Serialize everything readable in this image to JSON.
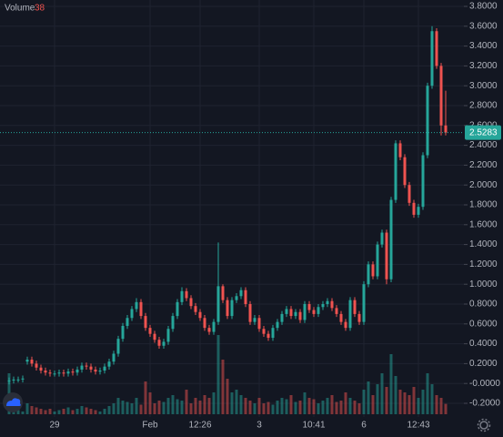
{
  "chart_data": {
    "type": "candlestick",
    "categories": [
      null,
      null,
      null,
      null,
      null,
      null,
      null,
      null,
      null,
      null,
      "29",
      null,
      null,
      null,
      null,
      null,
      null,
      null,
      null,
      null,
      null,
      null,
      null,
      null,
      null,
      null,
      null,
      null,
      null,
      null,
      null,
      "Feb",
      null,
      null,
      null,
      null,
      null,
      null,
      null,
      null,
      null,
      null,
      "12:26",
      null,
      null,
      null,
      null,
      null,
      null,
      null,
      null,
      null,
      null,
      null,
      null,
      "3",
      null,
      null,
      null,
      null,
      null,
      null,
      null,
      null,
      null,
      null,
      null,
      "10:41",
      null,
      null,
      null,
      null,
      null,
      null,
      null,
      null,
      null,
      null,
      "6",
      null,
      null,
      null,
      null,
      null,
      null,
      null,
      null,
      null,
      null,
      null,
      "12:43",
      null,
      null,
      null,
      null,
      null,
      null
    ],
    "open": [
      0.02,
      0.03,
      0.04,
      0.04,
      0.22,
      0.24,
      0.2,
      0.16,
      0.13,
      0.11,
      0.1,
      0.1,
      0.11,
      0.1,
      0.12,
      0.11,
      0.14,
      0.18,
      0.17,
      0.14,
      0.12,
      0.13,
      0.17,
      0.22,
      0.3,
      0.45,
      0.58,
      0.66,
      0.75,
      0.82,
      0.68,
      0.56,
      0.5,
      0.44,
      0.38,
      0.42,
      0.55,
      0.68,
      0.82,
      0.93,
      0.86,
      0.78,
      0.72,
      0.66,
      0.56,
      0.52,
      0.62,
      0.98,
      0.84,
      0.68,
      0.84,
      0.88,
      0.94,
      0.8,
      0.62,
      0.66,
      0.55,
      0.5,
      0.46,
      0.56,
      0.62,
      0.7,
      0.75,
      0.68,
      0.72,
      0.64,
      0.8,
      0.74,
      0.7,
      0.77,
      0.8,
      0.83,
      0.76,
      0.7,
      0.62,
      0.56,
      0.84,
      0.7,
      0.62,
      1.0,
      1.2,
      1.08,
      1.4,
      1.52,
      1.05,
      1.85,
      2.42,
      2.28,
      2.0,
      1.82,
      1.7,
      1.78,
      2.3,
      3.0,
      3.55,
      3.2,
      2.6
    ],
    "high": [
      0.06,
      0.07,
      0.07,
      0.08,
      0.27,
      0.27,
      0.23,
      0.19,
      0.16,
      0.14,
      0.13,
      0.14,
      0.14,
      0.15,
      0.15,
      0.17,
      0.21,
      0.21,
      0.2,
      0.17,
      0.16,
      0.2,
      0.25,
      0.33,
      0.48,
      0.61,
      0.69,
      0.78,
      0.86,
      0.85,
      0.71,
      0.59,
      0.53,
      0.47,
      0.45,
      0.58,
      0.71,
      0.85,
      0.97,
      0.96,
      0.89,
      0.81,
      0.75,
      0.69,
      0.59,
      0.65,
      1.42,
      1.0,
      0.87,
      0.87,
      0.91,
      0.97,
      0.97,
      0.83,
      0.69,
      0.69,
      0.58,
      0.53,
      0.59,
      0.65,
      0.73,
      0.78,
      0.78,
      0.75,
      0.75,
      0.83,
      0.83,
      0.77,
      0.8,
      0.83,
      0.86,
      0.86,
      0.79,
      0.73,
      0.65,
      0.87,
      0.87,
      0.73,
      1.03,
      1.23,
      1.23,
      1.43,
      1.55,
      1.55,
      1.88,
      2.45,
      2.45,
      2.31,
      2.03,
      1.85,
      1.81,
      2.33,
      3.03,
      3.6,
      3.58,
      3.23,
      2.95
    ],
    "low": [
      -0.01,
      0.0,
      0.01,
      0.01,
      0.19,
      0.17,
      0.13,
      0.1,
      0.08,
      0.07,
      0.07,
      0.07,
      0.07,
      0.07,
      0.08,
      0.08,
      0.11,
      0.14,
      0.11,
      0.09,
      0.09,
      0.1,
      0.14,
      0.19,
      0.27,
      0.42,
      0.55,
      0.63,
      0.72,
      0.65,
      0.53,
      0.47,
      0.41,
      0.35,
      0.35,
      0.39,
      0.52,
      0.65,
      0.79,
      0.83,
      0.75,
      0.69,
      0.63,
      0.53,
      0.49,
      0.49,
      0.59,
      0.81,
      0.65,
      0.65,
      0.81,
      0.85,
      0.77,
      0.59,
      0.59,
      0.52,
      0.47,
      0.43,
      0.43,
      0.53,
      0.59,
      0.67,
      0.65,
      0.65,
      0.61,
      0.61,
      0.71,
      0.67,
      0.67,
      0.74,
      0.77,
      0.73,
      0.67,
      0.59,
      0.53,
      0.53,
      0.67,
      0.59,
      0.59,
      0.97,
      1.05,
      1.05,
      1.37,
      1.0,
      1.02,
      1.82,
      2.25,
      1.97,
      1.79,
      1.67,
      1.67,
      1.75,
      2.27,
      2.97,
      3.17,
      2.5,
      2.5
    ],
    "close": [
      0.03,
      0.04,
      0.04,
      0.05,
      0.24,
      0.2,
      0.16,
      0.13,
      0.11,
      0.1,
      0.1,
      0.11,
      0.1,
      0.12,
      0.11,
      0.14,
      0.18,
      0.17,
      0.14,
      0.12,
      0.13,
      0.17,
      0.22,
      0.3,
      0.45,
      0.58,
      0.66,
      0.75,
      0.82,
      0.68,
      0.56,
      0.5,
      0.44,
      0.38,
      0.42,
      0.55,
      0.68,
      0.82,
      0.93,
      0.86,
      0.78,
      0.72,
      0.66,
      0.56,
      0.52,
      0.62,
      0.98,
      0.84,
      0.68,
      0.84,
      0.88,
      0.94,
      0.8,
      0.62,
      0.66,
      0.55,
      0.5,
      0.46,
      0.56,
      0.62,
      0.7,
      0.75,
      0.68,
      0.72,
      0.64,
      0.8,
      0.74,
      0.7,
      0.77,
      0.8,
      0.83,
      0.76,
      0.7,
      0.62,
      0.56,
      0.84,
      0.7,
      0.62,
      1.0,
      1.2,
      1.08,
      1.4,
      1.52,
      1.05,
      1.85,
      2.42,
      2.28,
      2.0,
      1.82,
      1.7,
      1.78,
      2.3,
      3.0,
      3.55,
      3.2,
      2.6,
      2.5283
    ],
    "up_color": "#26a69a",
    "down_color": "#ef5350",
    "volume": {
      "name": "Volume",
      "axis": "y2",
      "values": [
        150,
        20,
        15,
        10,
        40,
        30,
        25,
        20,
        15,
        20,
        10,
        15,
        20,
        25,
        15,
        20,
        30,
        25,
        20,
        15,
        10,
        20,
        30,
        40,
        60,
        50,
        45,
        40,
        60,
        35,
        120,
        80,
        40,
        50,
        45,
        60,
        70,
        55,
        50,
        90,
        40,
        60,
        50,
        70,
        60,
        80,
        290,
        200,
        130,
        80,
        90,
        70,
        60,
        50,
        40,
        60,
        40,
        45,
        35,
        50,
        60,
        55,
        70,
        45,
        50,
        80,
        60,
        55,
        40,
        50,
        60,
        70,
        45,
        50,
        80,
        60,
        50,
        40,
        90,
        120,
        70,
        110,
        150,
        100,
        220,
        140,
        90,
        80,
        70,
        100,
        60,
        90,
        150,
        110,
        70,
        60,
        38
      ]
    },
    "ylim": [
      -0.2,
      3.8
    ],
    "yticks": [
      {
        "value": -0.2,
        "label": "-0.2000"
      },
      {
        "value": 0,
        "label": "-0.0000"
      },
      {
        "value": 0.2,
        "label": "0.2000"
      },
      {
        "value": 0.4,
        "label": "0.4000"
      },
      {
        "value": 0.6,
        "label": "0.6000"
      },
      {
        "value": 0.8,
        "label": "0.8000"
      },
      {
        "value": 1.0,
        "label": "1.0000"
      },
      {
        "value": 1.2,
        "label": "1.2000"
      },
      {
        "value": 1.4,
        "label": "1.4000"
      },
      {
        "value": 1.6,
        "label": "1.6000"
      },
      {
        "value": 1.8,
        "label": "1.8000"
      },
      {
        "value": 2.0,
        "label": "2.0000"
      },
      {
        "value": 2.2,
        "label": "2.2000"
      },
      {
        "value": 2.4,
        "label": "2.4000"
      },
      {
        "value": 2.6,
        "label": "2.6000"
      },
      {
        "value": 2.8,
        "label": "2.8000"
      },
      {
        "value": 3.0,
        "label": "3.0000"
      },
      {
        "value": 3.2,
        "label": "3.2000"
      },
      {
        "value": 3.4,
        "label": "3.4000"
      },
      {
        "value": 3.6,
        "label": "3.6000"
      },
      {
        "value": 3.8,
        "label": "3.8000"
      }
    ],
    "y2lim": [
      0,
      1000
    ],
    "grid": true
  }
}
